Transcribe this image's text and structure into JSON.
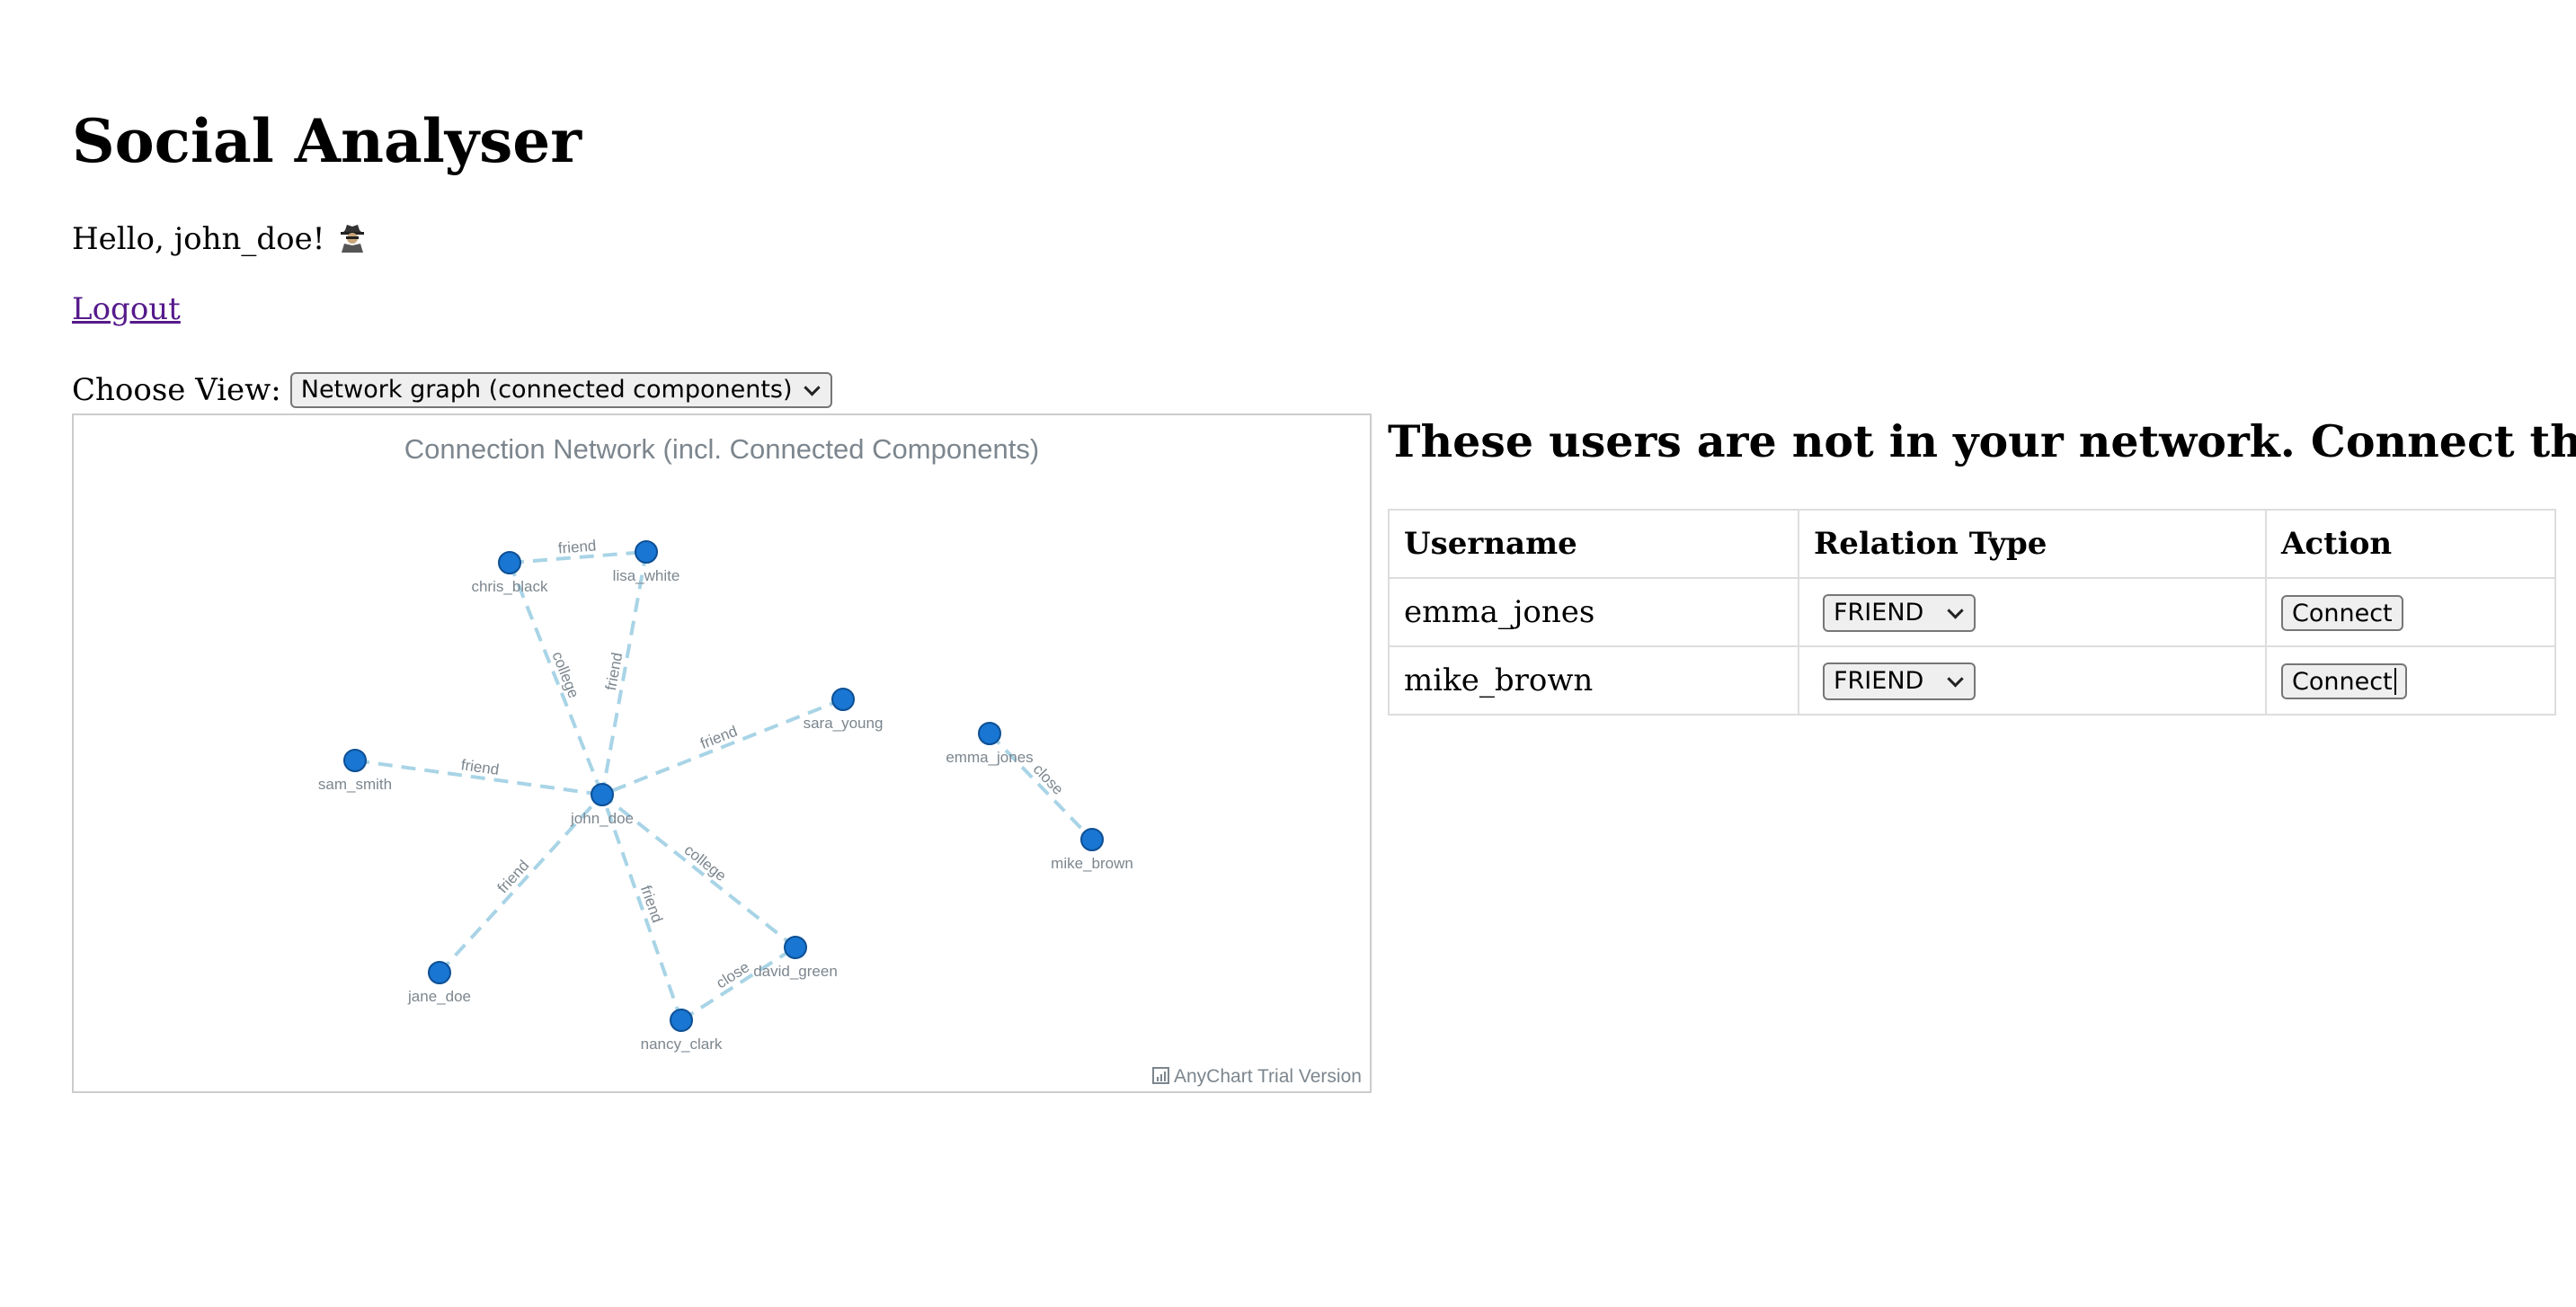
{
  "app": {
    "title": "Social Analyser",
    "greeting": "Hello, john_doe!",
    "logout_label": "Logout"
  },
  "view": {
    "label": "Choose View:",
    "selected": "Network graph (connected components)"
  },
  "network": {
    "title": "Connection Network (incl. Connected Components)",
    "watermark": "AnyChart Trial Version",
    "node_color": "#1976d2",
    "edge_color": "#a8d4e6",
    "nodes": [
      {
        "id": "john_doe"
      },
      {
        "id": "chris_black"
      },
      {
        "id": "lisa_white"
      },
      {
        "id": "sara_young"
      },
      {
        "id": "sam_smith"
      },
      {
        "id": "jane_doe"
      },
      {
        "id": "nancy_clark"
      },
      {
        "id": "david_green"
      },
      {
        "id": "emma_jones"
      },
      {
        "id": "mike_brown"
      }
    ],
    "edges": [
      {
        "from": "chris_black",
        "to": "lisa_white",
        "label": "friend"
      },
      {
        "from": "chris_black",
        "to": "john_doe",
        "label": "college"
      },
      {
        "from": "lisa_white",
        "to": "john_doe",
        "label": "friend"
      },
      {
        "from": "sara_young",
        "to": "john_doe",
        "label": "friend"
      },
      {
        "from": "sam_smith",
        "to": "john_doe",
        "label": "friend"
      },
      {
        "from": "jane_doe",
        "to": "john_doe",
        "label": "friend"
      },
      {
        "from": "nancy_clark",
        "to": "john_doe",
        "label": "friend"
      },
      {
        "from": "david_green",
        "to": "john_doe",
        "label": "college"
      },
      {
        "from": "nancy_clark",
        "to": "david_green",
        "label": "close"
      },
      {
        "from": "emma_jones",
        "to": "mike_brown",
        "label": "close"
      }
    ]
  },
  "suggestions": {
    "heading": "These users are not in your network. Connect them?",
    "columns": [
      "Username",
      "Relation Type",
      "Action"
    ],
    "rows": [
      {
        "username": "emma_jones",
        "relation": "FRIEND",
        "action": "Connect"
      },
      {
        "username": "mike_brown",
        "relation": "FRIEND",
        "action": "Connect"
      }
    ]
  }
}
